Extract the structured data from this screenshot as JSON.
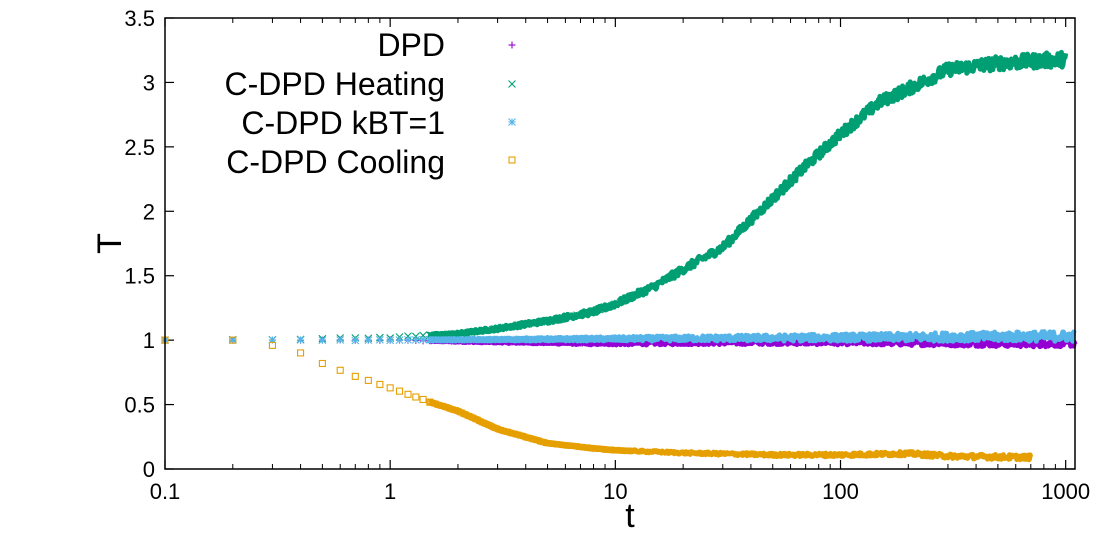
{
  "chart_data": {
    "type": "scatter",
    "xscale": "log",
    "xlim": [
      0.1,
      1100
    ],
    "ylim": [
      0,
      3.5
    ],
    "xlabel": "t",
    "ylabel": "T",
    "x_ticks": [
      0.1,
      1,
      10,
      100,
      1000
    ],
    "x_tick_labels": [
      "0.1",
      "1",
      "10",
      "100",
      "1000"
    ],
    "y_ticks": [
      0,
      0.5,
      1,
      1.5,
      2,
      2.5,
      3,
      3.5
    ],
    "y_tick_labels": [
      "0",
      "0.5",
      "1",
      "1.5",
      "2",
      "2.5",
      "3",
      "3.5"
    ],
    "legend_position": "top-left",
    "series": [
      {
        "name": "DPD",
        "marker": "plus",
        "color": "#9400d3",
        "anchors_x": [
          0.1,
          1,
          2,
          3,
          5,
          8,
          10,
          20,
          50,
          100,
          300,
          700,
          1100
        ],
        "anchors_y": [
          1.0,
          1.0,
          0.99,
          0.985,
          0.98,
          0.975,
          0.975,
          0.98,
          0.985,
          0.985,
          0.98,
          0.975,
          0.98
        ],
        "noise": 0.015
      },
      {
        "name": "C-DPD Heating",
        "marker": "cross",
        "color": "#009e73",
        "anchors_x": [
          0.1,
          0.5,
          1,
          2,
          3,
          5,
          8,
          10,
          15,
          20,
          30,
          50,
          70,
          100,
          150,
          200,
          300,
          500,
          1000
        ],
        "anchors_y": [
          1.0,
          1.01,
          1.02,
          1.05,
          1.09,
          1.15,
          1.22,
          1.28,
          1.42,
          1.55,
          1.72,
          2.1,
          2.35,
          2.6,
          2.85,
          2.95,
          3.1,
          3.15,
          3.18
        ],
        "noise": 0.03
      },
      {
        "name": "C-DPD kBT=1",
        "marker": "star",
        "color": "#56b4e9",
        "anchors_x": [
          0.1,
          1,
          3,
          10,
          30,
          100,
          300,
          1000,
          1100
        ],
        "anchors_y": [
          1.0,
          1.0,
          1.005,
          1.01,
          1.015,
          1.02,
          1.025,
          1.03,
          1.03
        ],
        "noise": 0.02
      },
      {
        "name": "C-DPD Cooling",
        "marker": "square",
        "color": "#e69f00",
        "anchors_x": [
          0.1,
          0.2,
          0.3,
          0.4,
          0.5,
          0.7,
          1,
          1.5,
          2,
          3,
          5,
          8,
          10,
          20,
          50,
          100,
          200,
          300,
          700
        ],
        "anchors_y": [
          1.0,
          1.0,
          0.96,
          0.9,
          0.82,
          0.72,
          0.63,
          0.52,
          0.45,
          0.31,
          0.2,
          0.16,
          0.145,
          0.125,
          0.11,
          0.11,
          0.12,
          0.1,
          0.09
        ],
        "noise": 0.01
      }
    ]
  }
}
